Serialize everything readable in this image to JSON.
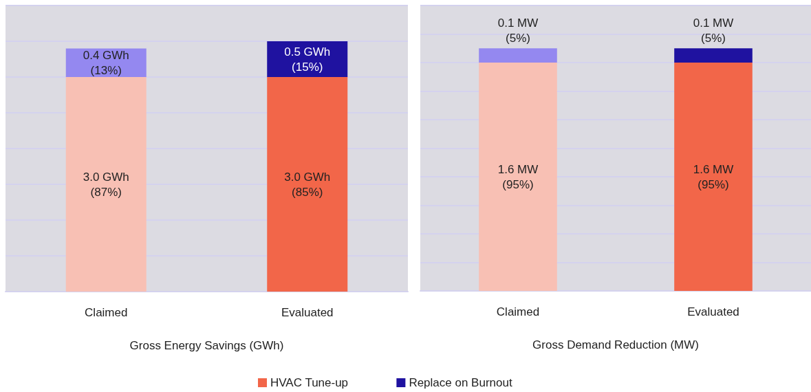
{
  "chart_data": [
    {
      "type": "bar",
      "xlabel": "Gross Energy Savings (GWh)",
      "categories": [
        "Claimed",
        "Evaluated"
      ],
      "stacked": true,
      "ylim": [
        0,
        4
      ],
      "yticks": [
        {
          "value": 0,
          "label": null
        },
        {
          "value": 0.5,
          "label": null
        },
        {
          "value": 1,
          "label": null
        },
        {
          "value": 1.5,
          "label": null
        },
        {
          "value": 2,
          "label": null
        },
        {
          "value": 2.5,
          "label": null
        },
        {
          "value": 3,
          "label": null
        },
        {
          "value": 3.5,
          "label": null
        },
        {
          "value": 4,
          "label": null
        }
      ],
      "grid": "y",
      "tick_labels": "x",
      "legend": "bottom",
      "series": [
        {
          "name": "HVAC Tune-up",
          "color": "#f26649",
          "colors": [
            "#f8c0b4",
            "#f26649"
          ],
          "values": [
            3.0,
            3.0
          ],
          "value_labels": [
            "3.0 GWh\n(87%)",
            "3.0 GWh\n(85%)"
          ]
        },
        {
          "name": "Replace on Burnout",
          "color": "#1f12a0",
          "colors": [
            "#9488f0",
            "#1f12a0"
          ],
          "values": [
            0.4,
            0.5
          ],
          "value_labels": [
            "0.4 GWh\n(13%)",
            "0.5 GWh\n(15%)"
          ]
        }
      ]
    },
    {
      "type": "bar",
      "xlabel": "Gross Demand Reduction (MW)",
      "categories": [
        "Claimed",
        "Evaluated"
      ],
      "stacked": true,
      "ylim": [
        0,
        2
      ],
      "yticks": [
        {
          "value": 0,
          "label": null
        },
        {
          "value": 0.2,
          "label": null
        },
        {
          "value": 0.4,
          "label": null
        },
        {
          "value": 0.6,
          "label": null
        },
        {
          "value": 0.8,
          "label": null
        },
        {
          "value": 1,
          "label": null
        },
        {
          "value": 1.2,
          "label": null
        },
        {
          "value": 1.4,
          "label": null
        },
        {
          "value": 1.6,
          "label": null
        },
        {
          "value": 1.8,
          "label": null
        },
        {
          "value": 2,
          "label": null
        }
      ],
      "grid": "y",
      "tick_labels": "x",
      "series": [
        {
          "color": "#f26649",
          "colors": [
            "#f8c0b4",
            "#f26649"
          ],
          "values": [
            1.6,
            1.6
          ],
          "value_labels": [
            "1.6 MW\n(95%)",
            "1.6 MW\n(95%)"
          ]
        },
        {
          "color": "#1f12a0",
          "colors": [
            "#9488f0",
            "#1f12a0"
          ],
          "values": [
            0.1,
            0.1
          ],
          "value_labels": [
            "0.1 MW\n(5%)",
            "0.1 MW\n(5%)"
          ]
        }
      ]
    }
  ]
}
